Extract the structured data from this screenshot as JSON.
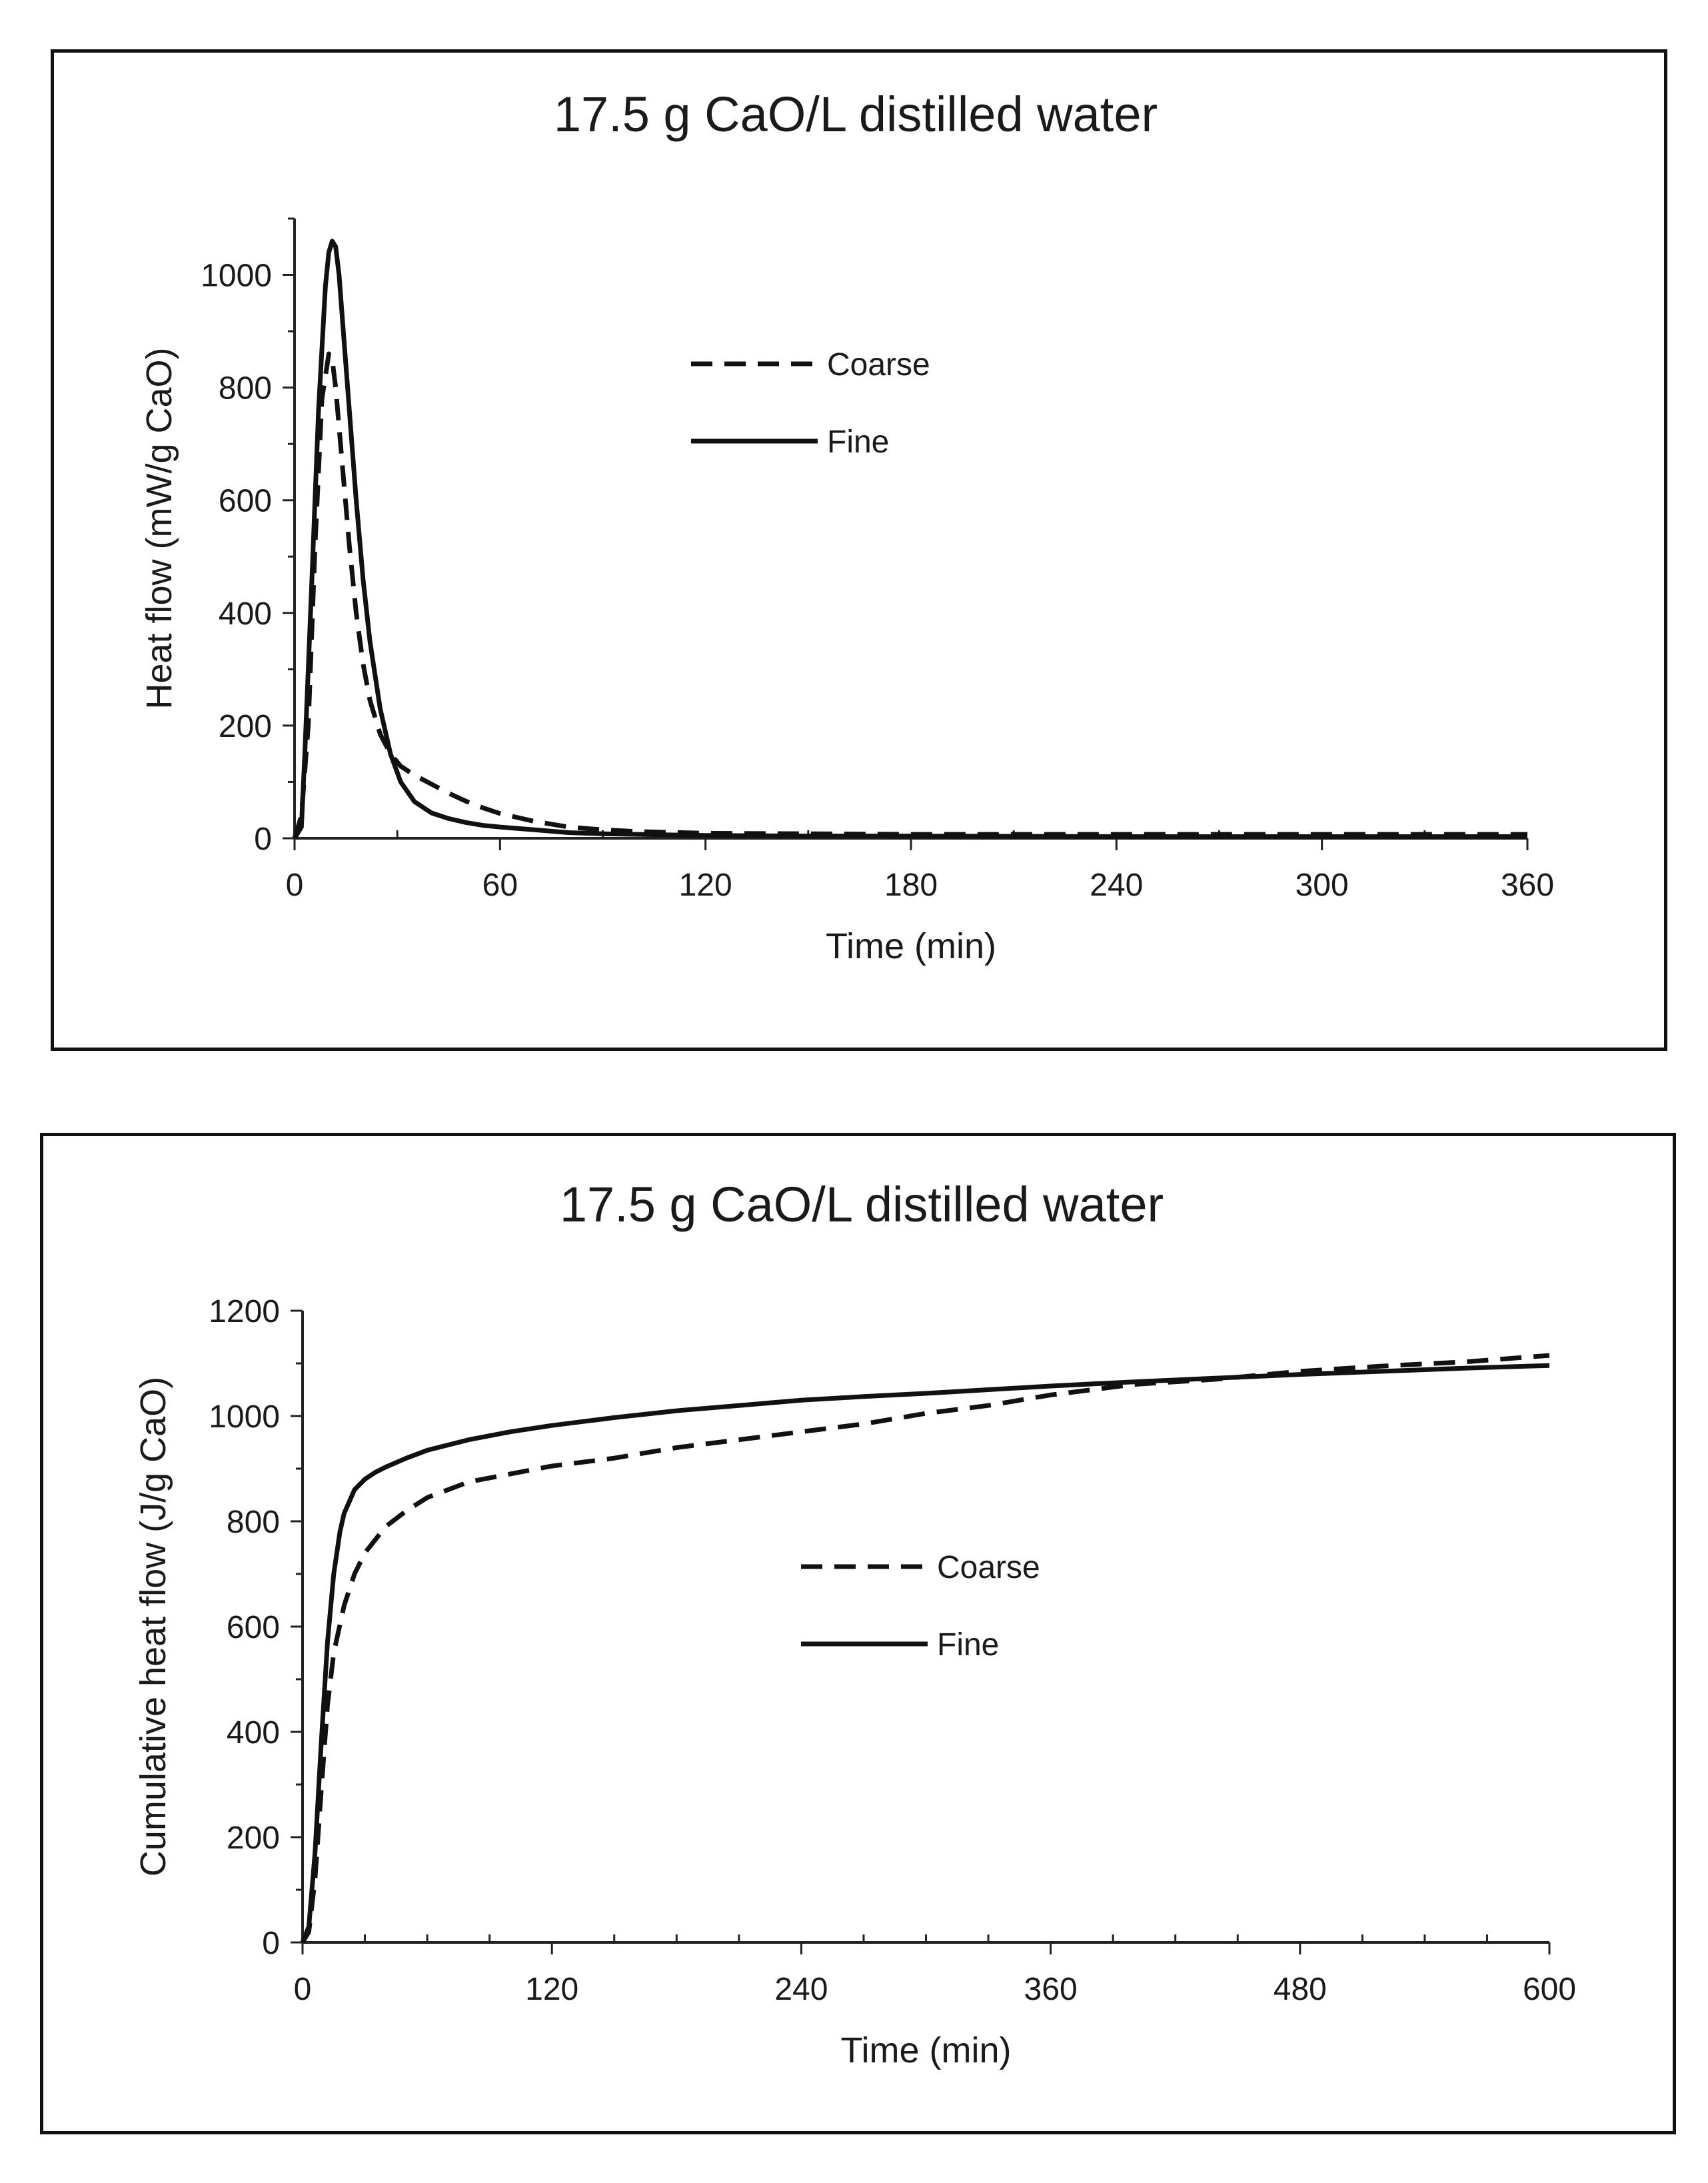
{
  "chart_data": [
    {
      "type": "line",
      "title": "17.5 g CaO/L distilled water",
      "xlabel": "Time (min)",
      "ylabel": "Heat flow (mW/g CaO)",
      "xlim": [
        0,
        360
      ],
      "ylim": [
        0,
        1100
      ],
      "xticks": [
        0,
        60,
        120,
        180,
        240,
        300,
        360
      ],
      "yticks": [
        0,
        200,
        400,
        600,
        800,
        1000
      ],
      "legend": "upper-center",
      "series": [
        {
          "name": "Coarse",
          "style": "dashed",
          "x": [
            0,
            2,
            4,
            6,
            8,
            10,
            11,
            12,
            14,
            16,
            18,
            20,
            22,
            25,
            28,
            31,
            35,
            40,
            45,
            50,
            55,
            60,
            70,
            80,
            90,
            100,
            120,
            150,
            180,
            240,
            300,
            360
          ],
          "y": [
            0,
            40,
            200,
            520,
            780,
            860,
            850,
            800,
            660,
            520,
            400,
            310,
            245,
            185,
            150,
            128,
            112,
            96,
            80,
            66,
            54,
            44,
            30,
            20,
            15,
            12,
            9,
            8,
            7,
            7,
            7,
            7
          ]
        },
        {
          "name": "Fine",
          "style": "solid",
          "x": [
            0,
            2,
            3,
            5,
            7,
            9,
            10,
            11,
            12,
            13,
            14,
            16,
            18,
            20,
            22,
            25,
            28,
            31,
            35,
            40,
            45,
            50,
            55,
            60,
            70,
            80,
            90,
            100,
            120,
            150,
            180,
            240,
            300,
            360
          ],
          "y": [
            0,
            20,
            150,
            450,
            760,
            980,
            1040,
            1060,
            1050,
            1000,
            920,
            760,
            600,
            460,
            350,
            230,
            150,
            100,
            65,
            45,
            35,
            28,
            23,
            20,
            15,
            10,
            8,
            7,
            5,
            4,
            4,
            3,
            3,
            3
          ]
        }
      ]
    },
    {
      "type": "line",
      "title": "17.5 g CaO/L distilled water",
      "xlabel": "Time (min)",
      "ylabel": "Cumulative heat flow (J/g CaO)",
      "xlim": [
        0,
        600
      ],
      "ylim": [
        0,
        1200
      ],
      "xticks": [
        0,
        120,
        240,
        360,
        480,
        600
      ],
      "yticks": [
        0,
        200,
        400,
        600,
        800,
        1000,
        1200
      ],
      "legend": "center",
      "series": [
        {
          "name": "Coarse",
          "style": "dashed",
          "x": [
            0,
            3,
            6,
            9,
            12,
            15,
            20,
            25,
            30,
            40,
            50,
            60,
            80,
            100,
            120,
            150,
            180,
            210,
            240,
            270,
            300,
            330,
            360,
            400,
            440,
            480,
            520,
            560,
            600
          ],
          "y": [
            0,
            20,
            120,
            290,
            450,
            550,
            640,
            700,
            740,
            790,
            820,
            845,
            875,
            890,
            905,
            920,
            940,
            955,
            970,
            985,
            1005,
            1020,
            1040,
            1060,
            1070,
            1085,
            1095,
            1103,
            1115
          ]
        },
        {
          "name": "Fine",
          "style": "solid",
          "x": [
            0,
            3,
            6,
            9,
            12,
            15,
            18,
            20,
            25,
            30,
            35,
            40,
            50,
            60,
            80,
            100,
            120,
            150,
            180,
            210,
            240,
            270,
            300,
            330,
            360,
            400,
            440,
            480,
            520,
            560,
            600
          ],
          "y": [
            0,
            30,
            170,
            380,
            570,
            700,
            780,
            815,
            860,
            880,
            893,
            903,
            920,
            935,
            955,
            970,
            982,
            997,
            1010,
            1020,
            1030,
            1037,
            1043,
            1050,
            1057,
            1065,
            1072,
            1079,
            1085,
            1091,
            1096
          ]
        }
      ]
    }
  ]
}
